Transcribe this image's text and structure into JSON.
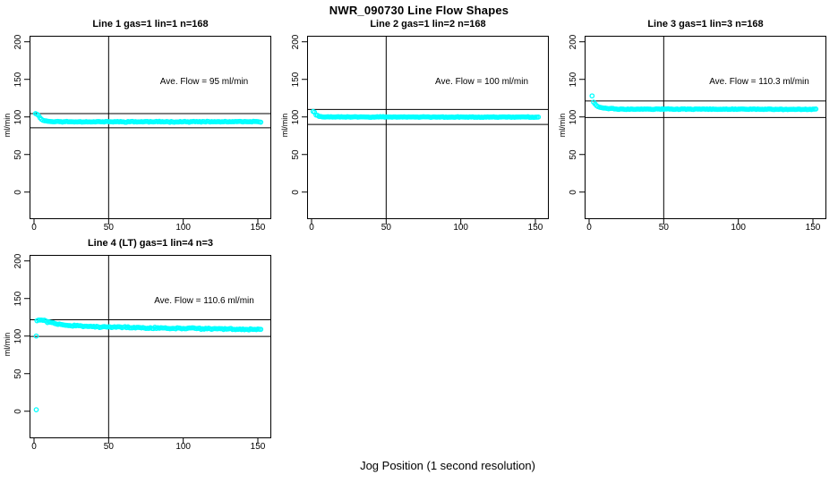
{
  "title": "NWR_090730  Line Flow Shapes",
  "xlabel": "Jog Position (1 second resolution)",
  "colors": {
    "point_color": "#00ffff",
    "line_color": "#000000",
    "background": "#ffffff"
  },
  "axes": {
    "ylabel": "ml/min",
    "x_ticks": [
      0,
      50,
      100,
      150
    ],
    "y_ticks": [
      0,
      50,
      100,
      150,
      200
    ],
    "x_range": [
      -3,
      159
    ],
    "y_range": [
      -36,
      208
    ]
  },
  "chart_data": [
    {
      "type": "scatter",
      "title": "Line 1 gas=1 lin=1 n=168",
      "annotation": "Ave. Flow =  95  ml/min",
      "ave_flow": 95,
      "n": 168,
      "hlines": [
        104.5,
        85.5
      ],
      "vline": 50,
      "x_start": 1,
      "x_end": 152,
      "profile": [
        [
          1,
          104.8
        ],
        [
          2,
          104
        ],
        [
          4,
          99
        ],
        [
          6,
          95.5
        ],
        [
          10,
          94
        ],
        [
          20,
          93.6
        ],
        [
          152,
          93.6
        ]
      ],
      "noise": 0.7,
      "seed": 11,
      "outliers": []
    },
    {
      "type": "scatter",
      "title": "Line 2 gas=1 lin=2 n=168",
      "annotation": "Ave. Flow =  100  ml/min",
      "ave_flow": 100,
      "n": 168,
      "hlines": [
        110,
        90
      ],
      "vline": 50,
      "x_start": 1,
      "x_end": 152,
      "profile": [
        [
          1,
          107.5
        ],
        [
          2,
          106
        ],
        [
          3,
          103
        ],
        [
          5,
          100.5
        ],
        [
          8,
          100
        ],
        [
          152,
          99.8
        ]
      ],
      "noise": 0.5,
      "seed": 22,
      "outliers": []
    },
    {
      "type": "scatter",
      "title": "Line 3 gas=1 lin=3 n=168",
      "annotation": "Ave. Flow =  110.3  ml/min",
      "ave_flow": 110.3,
      "n": 168,
      "hlines": [
        121.3,
        99.3
      ],
      "vline": 50,
      "x_start": 3,
      "x_end": 152,
      "profile": [
        [
          3,
          120
        ],
        [
          4,
          117
        ],
        [
          6,
          113.5
        ],
        [
          10,
          111.5
        ],
        [
          20,
          110.5
        ],
        [
          152,
          110.2
        ]
      ],
      "noise": 0.6,
      "seed": 33,
      "outliers": [
        [
          2,
          128
        ]
      ]
    },
    {
      "type": "scatter",
      "title": "Line 4 (LT) gas=1 lin=4 n=3",
      "annotation": "Ave. Flow =  110.6  ml/min",
      "ave_flow": 110.6,
      "n": 3,
      "hlines": [
        121.7,
        99.5
      ],
      "vline": 50,
      "x_start": 2,
      "x_end": 152,
      "profile": [
        [
          2,
          121
        ],
        [
          6,
          121
        ],
        [
          10,
          118.5
        ],
        [
          15,
          116.5
        ],
        [
          25,
          114
        ],
        [
          40,
          112.5
        ],
        [
          70,
          111
        ],
        [
          110,
          110
        ],
        [
          152,
          108.8
        ]
      ],
      "noise": 1.2,
      "seed": 44,
      "outliers": [
        [
          1.5,
          100
        ],
        [
          1.5,
          2
        ]
      ]
    }
  ]
}
